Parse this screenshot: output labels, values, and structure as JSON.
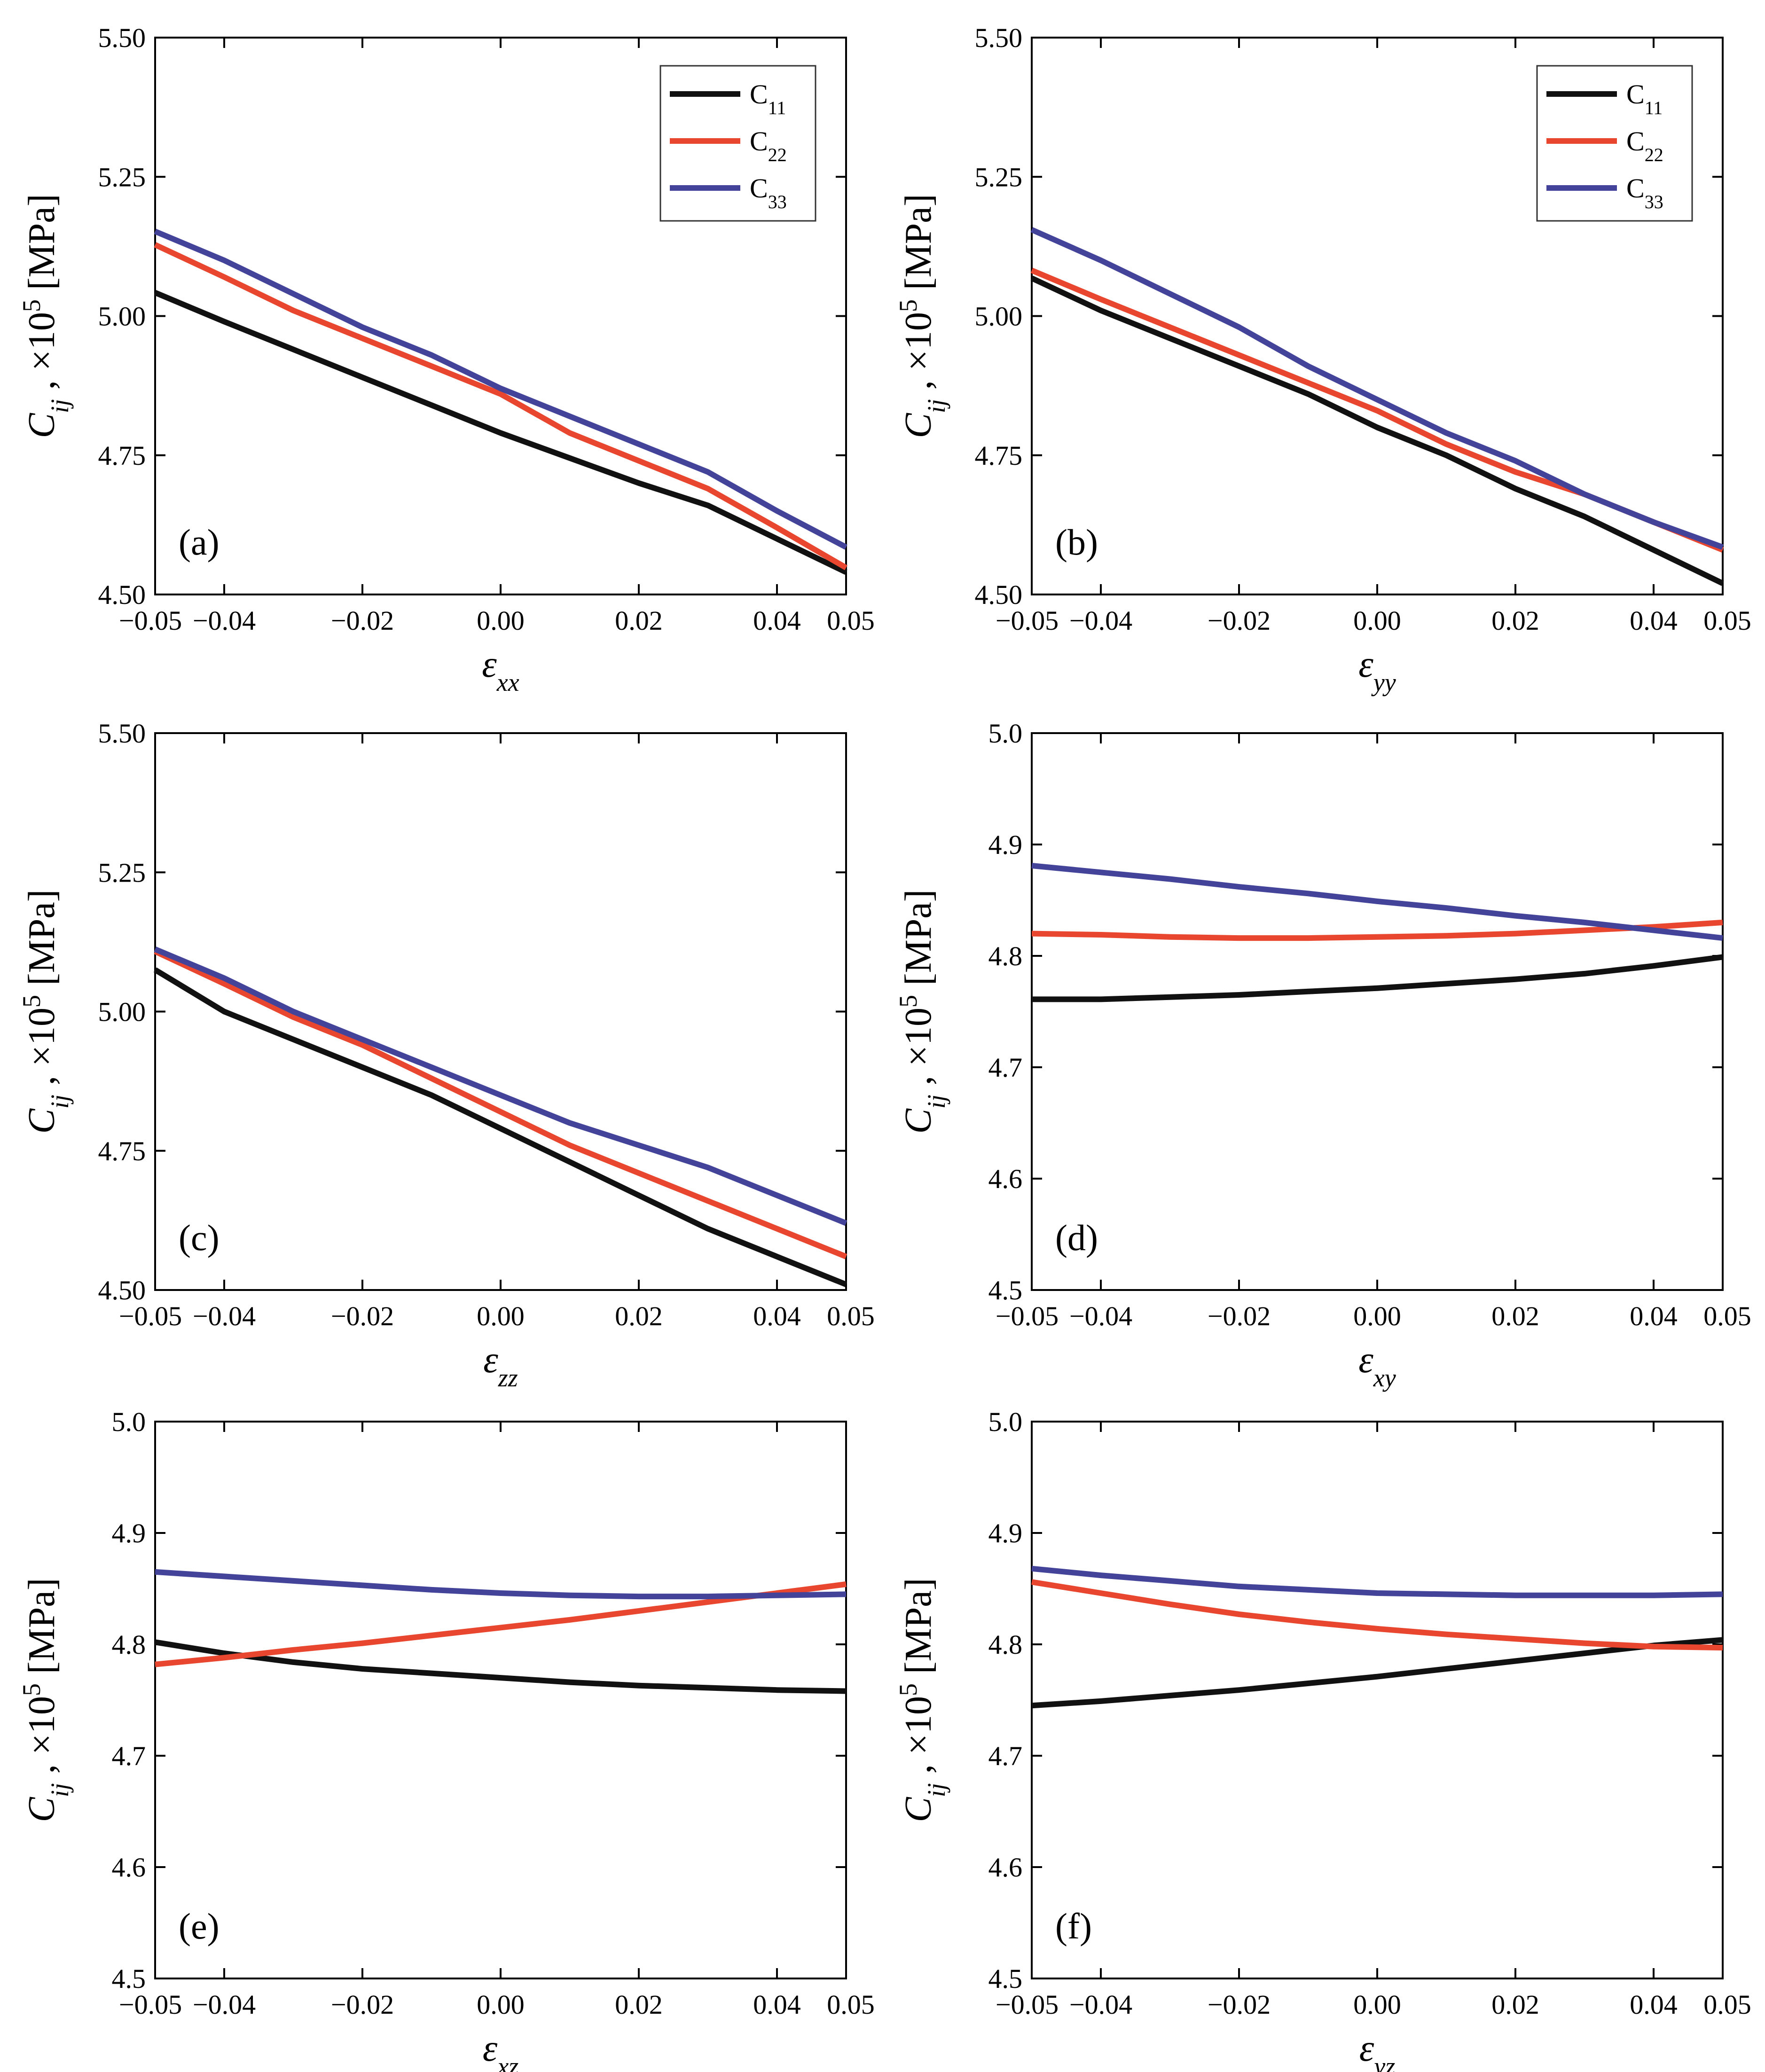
{
  "figure": {
    "y_label": {
      "symbol": "C",
      "sub": "ij",
      "mid": " ,  ×10",
      "sup": "5",
      "unit": " [MPa]"
    },
    "x_label_symbol": "ε",
    "legend_sub_prefix": "C"
  },
  "colors": {
    "C11": "#111111",
    "C22": "#e8462f",
    "C33": "#43439a"
  },
  "chart_data": [
    {
      "type": "line",
      "panel_label": "(a)",
      "x_sub": "xx",
      "xlim": [
        -0.05,
        0.05
      ],
      "ylim": [
        4.5,
        5.5
      ],
      "xticks": [
        -0.05,
        -0.04,
        -0.02,
        0.0,
        0.02,
        0.04,
        0.05
      ],
      "xtick_labels": [
        "−0.05",
        "−0.04",
        "−0.02",
        "0.00",
        "0.02",
        "0.04",
        "0.05"
      ],
      "yticks": [
        4.5,
        4.75,
        5.0,
        5.25,
        5.5
      ],
      "ytick_labels": [
        "4.50",
        "4.75",
        "5.00",
        "5.25",
        "5.50"
      ],
      "legend": true,
      "x": [
        -0.05,
        -0.04,
        -0.03,
        -0.02,
        -0.01,
        0.0,
        0.01,
        0.02,
        0.03,
        0.04,
        0.05
      ],
      "series": [
        {
          "name": "C11",
          "sub": "11",
          "values": [
            5.042,
            4.99,
            4.94,
            4.89,
            4.84,
            4.79,
            4.745,
            4.7,
            4.66,
            4.6,
            4.54
          ]
        },
        {
          "name": "C22",
          "sub": "22",
          "values": [
            5.128,
            5.07,
            5.01,
            4.96,
            4.91,
            4.86,
            4.79,
            4.74,
            4.69,
            4.62,
            4.548
          ]
        },
        {
          "name": "C33",
          "sub": "33",
          "values": [
            5.152,
            5.1,
            5.04,
            4.98,
            4.93,
            4.87,
            4.82,
            4.77,
            4.72,
            4.65,
            4.585
          ]
        }
      ]
    },
    {
      "type": "line",
      "panel_label": "(b)",
      "x_sub": "yy",
      "xlim": [
        -0.05,
        0.05
      ],
      "ylim": [
        4.5,
        5.5
      ],
      "xticks": [
        -0.05,
        -0.04,
        -0.02,
        0.0,
        0.02,
        0.04,
        0.05
      ],
      "xtick_labels": [
        "−0.05",
        "−0.04",
        "−0.02",
        "0.00",
        "0.02",
        "0.04",
        "0.05"
      ],
      "yticks": [
        4.5,
        4.75,
        5.0,
        5.25,
        5.5
      ],
      "ytick_labels": [
        "4.50",
        "4.75",
        "5.00",
        "5.25",
        "5.50"
      ],
      "legend": true,
      "x": [
        -0.05,
        -0.04,
        -0.03,
        -0.02,
        -0.01,
        0.0,
        0.01,
        0.02,
        0.03,
        0.04,
        0.05
      ],
      "series": [
        {
          "name": "C11",
          "sub": "11",
          "values": [
            5.068,
            5.01,
            4.96,
            4.91,
            4.86,
            4.8,
            4.75,
            4.69,
            4.64,
            4.58,
            4.52
          ]
        },
        {
          "name": "C22",
          "sub": "22",
          "values": [
            5.082,
            5.03,
            4.98,
            4.93,
            4.88,
            4.83,
            4.77,
            4.72,
            4.68,
            4.63,
            4.58
          ]
        },
        {
          "name": "C33",
          "sub": "33",
          "values": [
            5.155,
            5.1,
            5.04,
            4.98,
            4.91,
            4.85,
            4.79,
            4.74,
            4.68,
            4.63,
            4.585
          ]
        }
      ]
    },
    {
      "type": "line",
      "panel_label": "(c)",
      "x_sub": "zz",
      "xlim": [
        -0.05,
        0.05
      ],
      "ylim": [
        4.5,
        5.5
      ],
      "xticks": [
        -0.05,
        -0.04,
        -0.02,
        0.0,
        0.02,
        0.04,
        0.05
      ],
      "xtick_labels": [
        "−0.05",
        "−0.04",
        "−0.02",
        "0.00",
        "0.02",
        "0.04",
        "0.05"
      ],
      "yticks": [
        4.5,
        4.75,
        5.0,
        5.25,
        5.5
      ],
      "ytick_labels": [
        "4.50",
        "4.75",
        "5.00",
        "5.25",
        "5.50"
      ],
      "legend": false,
      "x": [
        -0.05,
        -0.04,
        -0.03,
        -0.02,
        -0.01,
        0.0,
        0.01,
        0.02,
        0.03,
        0.04,
        0.05
      ],
      "series": [
        {
          "name": "C11",
          "sub": "11",
          "values": [
            5.075,
            5.0,
            4.95,
            4.9,
            4.85,
            4.79,
            4.73,
            4.67,
            4.61,
            4.56,
            4.51
          ]
        },
        {
          "name": "C22",
          "sub": "22",
          "values": [
            5.108,
            5.05,
            4.99,
            4.94,
            4.88,
            4.82,
            4.76,
            4.71,
            4.66,
            4.61,
            4.56
          ]
        },
        {
          "name": "C33",
          "sub": "33",
          "values": [
            5.112,
            5.06,
            5.0,
            4.95,
            4.9,
            4.85,
            4.8,
            4.76,
            4.72,
            4.67,
            4.62
          ]
        }
      ]
    },
    {
      "type": "line",
      "panel_label": "(d)",
      "x_sub": "xy",
      "xlim": [
        -0.05,
        0.05
      ],
      "ylim": [
        4.5,
        5.0
      ],
      "xticks": [
        -0.05,
        -0.04,
        -0.02,
        0.0,
        0.02,
        0.04,
        0.05
      ],
      "xtick_labels": [
        "−0.05",
        "−0.04",
        "−0.02",
        "0.00",
        "0.02",
        "0.04",
        "0.05"
      ],
      "yticks": [
        4.5,
        4.6,
        4.7,
        4.8,
        4.9,
        5.0
      ],
      "ytick_labels": [
        "4.5",
        "4.6",
        "4.7",
        "4.8",
        "4.9",
        "5.0"
      ],
      "legend": false,
      "x": [
        -0.05,
        -0.04,
        -0.03,
        -0.02,
        -0.01,
        0.0,
        0.01,
        0.02,
        0.03,
        0.04,
        0.05
      ],
      "series": [
        {
          "name": "C11",
          "sub": "11",
          "values": [
            4.761,
            4.761,
            4.763,
            4.765,
            4.768,
            4.771,
            4.775,
            4.779,
            4.784,
            4.791,
            4.799
          ]
        },
        {
          "name": "C22",
          "sub": "22",
          "values": [
            4.82,
            4.819,
            4.817,
            4.816,
            4.816,
            4.817,
            4.818,
            4.82,
            4.823,
            4.826,
            4.83
          ]
        },
        {
          "name": "C33",
          "sub": "33",
          "values": [
            4.881,
            4.875,
            4.869,
            4.862,
            4.856,
            4.849,
            4.843,
            4.836,
            4.83,
            4.823,
            4.816
          ]
        }
      ]
    },
    {
      "type": "line",
      "panel_label": "(e)",
      "x_sub": "xz",
      "xlim": [
        -0.05,
        0.05
      ],
      "ylim": [
        4.5,
        5.0
      ],
      "xticks": [
        -0.05,
        -0.04,
        -0.02,
        0.0,
        0.02,
        0.04,
        0.05
      ],
      "xtick_labels": [
        "−0.05",
        "−0.04",
        "−0.02",
        "0.00",
        "0.02",
        "0.04",
        "0.05"
      ],
      "yticks": [
        4.5,
        4.6,
        4.7,
        4.8,
        4.9,
        5.0
      ],
      "ytick_labels": [
        "4.5",
        "4.6",
        "4.7",
        "4.8",
        "4.9",
        "5.0"
      ],
      "legend": false,
      "x": [
        -0.05,
        -0.04,
        -0.03,
        -0.02,
        -0.01,
        0.0,
        0.01,
        0.02,
        0.03,
        0.04,
        0.05
      ],
      "series": [
        {
          "name": "C11",
          "sub": "11",
          "values": [
            4.802,
            4.792,
            4.784,
            4.778,
            4.774,
            4.77,
            4.766,
            4.763,
            4.761,
            4.759,
            4.758
          ]
        },
        {
          "name": "C22",
          "sub": "22",
          "values": [
            4.782,
            4.788,
            4.795,
            4.801,
            4.808,
            4.815,
            4.822,
            4.83,
            4.838,
            4.846,
            4.854
          ]
        },
        {
          "name": "C33",
          "sub": "33",
          "values": [
            4.865,
            4.861,
            4.857,
            4.853,
            4.849,
            4.846,
            4.844,
            4.843,
            4.843,
            4.844,
            4.845
          ]
        }
      ]
    },
    {
      "type": "line",
      "panel_label": "(f)",
      "x_sub": "yz",
      "xlim": [
        -0.05,
        0.05
      ],
      "ylim": [
        4.5,
        5.0
      ],
      "xticks": [
        -0.05,
        -0.04,
        -0.02,
        0.0,
        0.02,
        0.04,
        0.05
      ],
      "xtick_labels": [
        "−0.05",
        "−0.04",
        "−0.02",
        "0.00",
        "0.02",
        "0.04",
        "0.05"
      ],
      "yticks": [
        4.5,
        4.6,
        4.7,
        4.8,
        4.9,
        5.0
      ],
      "ytick_labels": [
        "4.5",
        "4.6",
        "4.7",
        "4.8",
        "4.9",
        "5.0"
      ],
      "legend": false,
      "x": [
        -0.05,
        -0.04,
        -0.03,
        -0.02,
        -0.01,
        0.0,
        0.01,
        0.02,
        0.03,
        0.04,
        0.05
      ],
      "series": [
        {
          "name": "C11",
          "sub": "11",
          "values": [
            4.745,
            4.749,
            4.754,
            4.759,
            4.765,
            4.771,
            4.778,
            4.785,
            4.792,
            4.799,
            4.804
          ]
        },
        {
          "name": "C22",
          "sub": "22",
          "values": [
            4.856,
            4.846,
            4.836,
            4.827,
            4.82,
            4.814,
            4.809,
            4.805,
            4.801,
            4.798,
            4.797
          ]
        },
        {
          "name": "C33",
          "sub": "33",
          "values": [
            4.868,
            4.862,
            4.857,
            4.852,
            4.849,
            4.846,
            4.845,
            4.844,
            4.844,
            4.844,
            4.845
          ]
        }
      ]
    }
  ]
}
